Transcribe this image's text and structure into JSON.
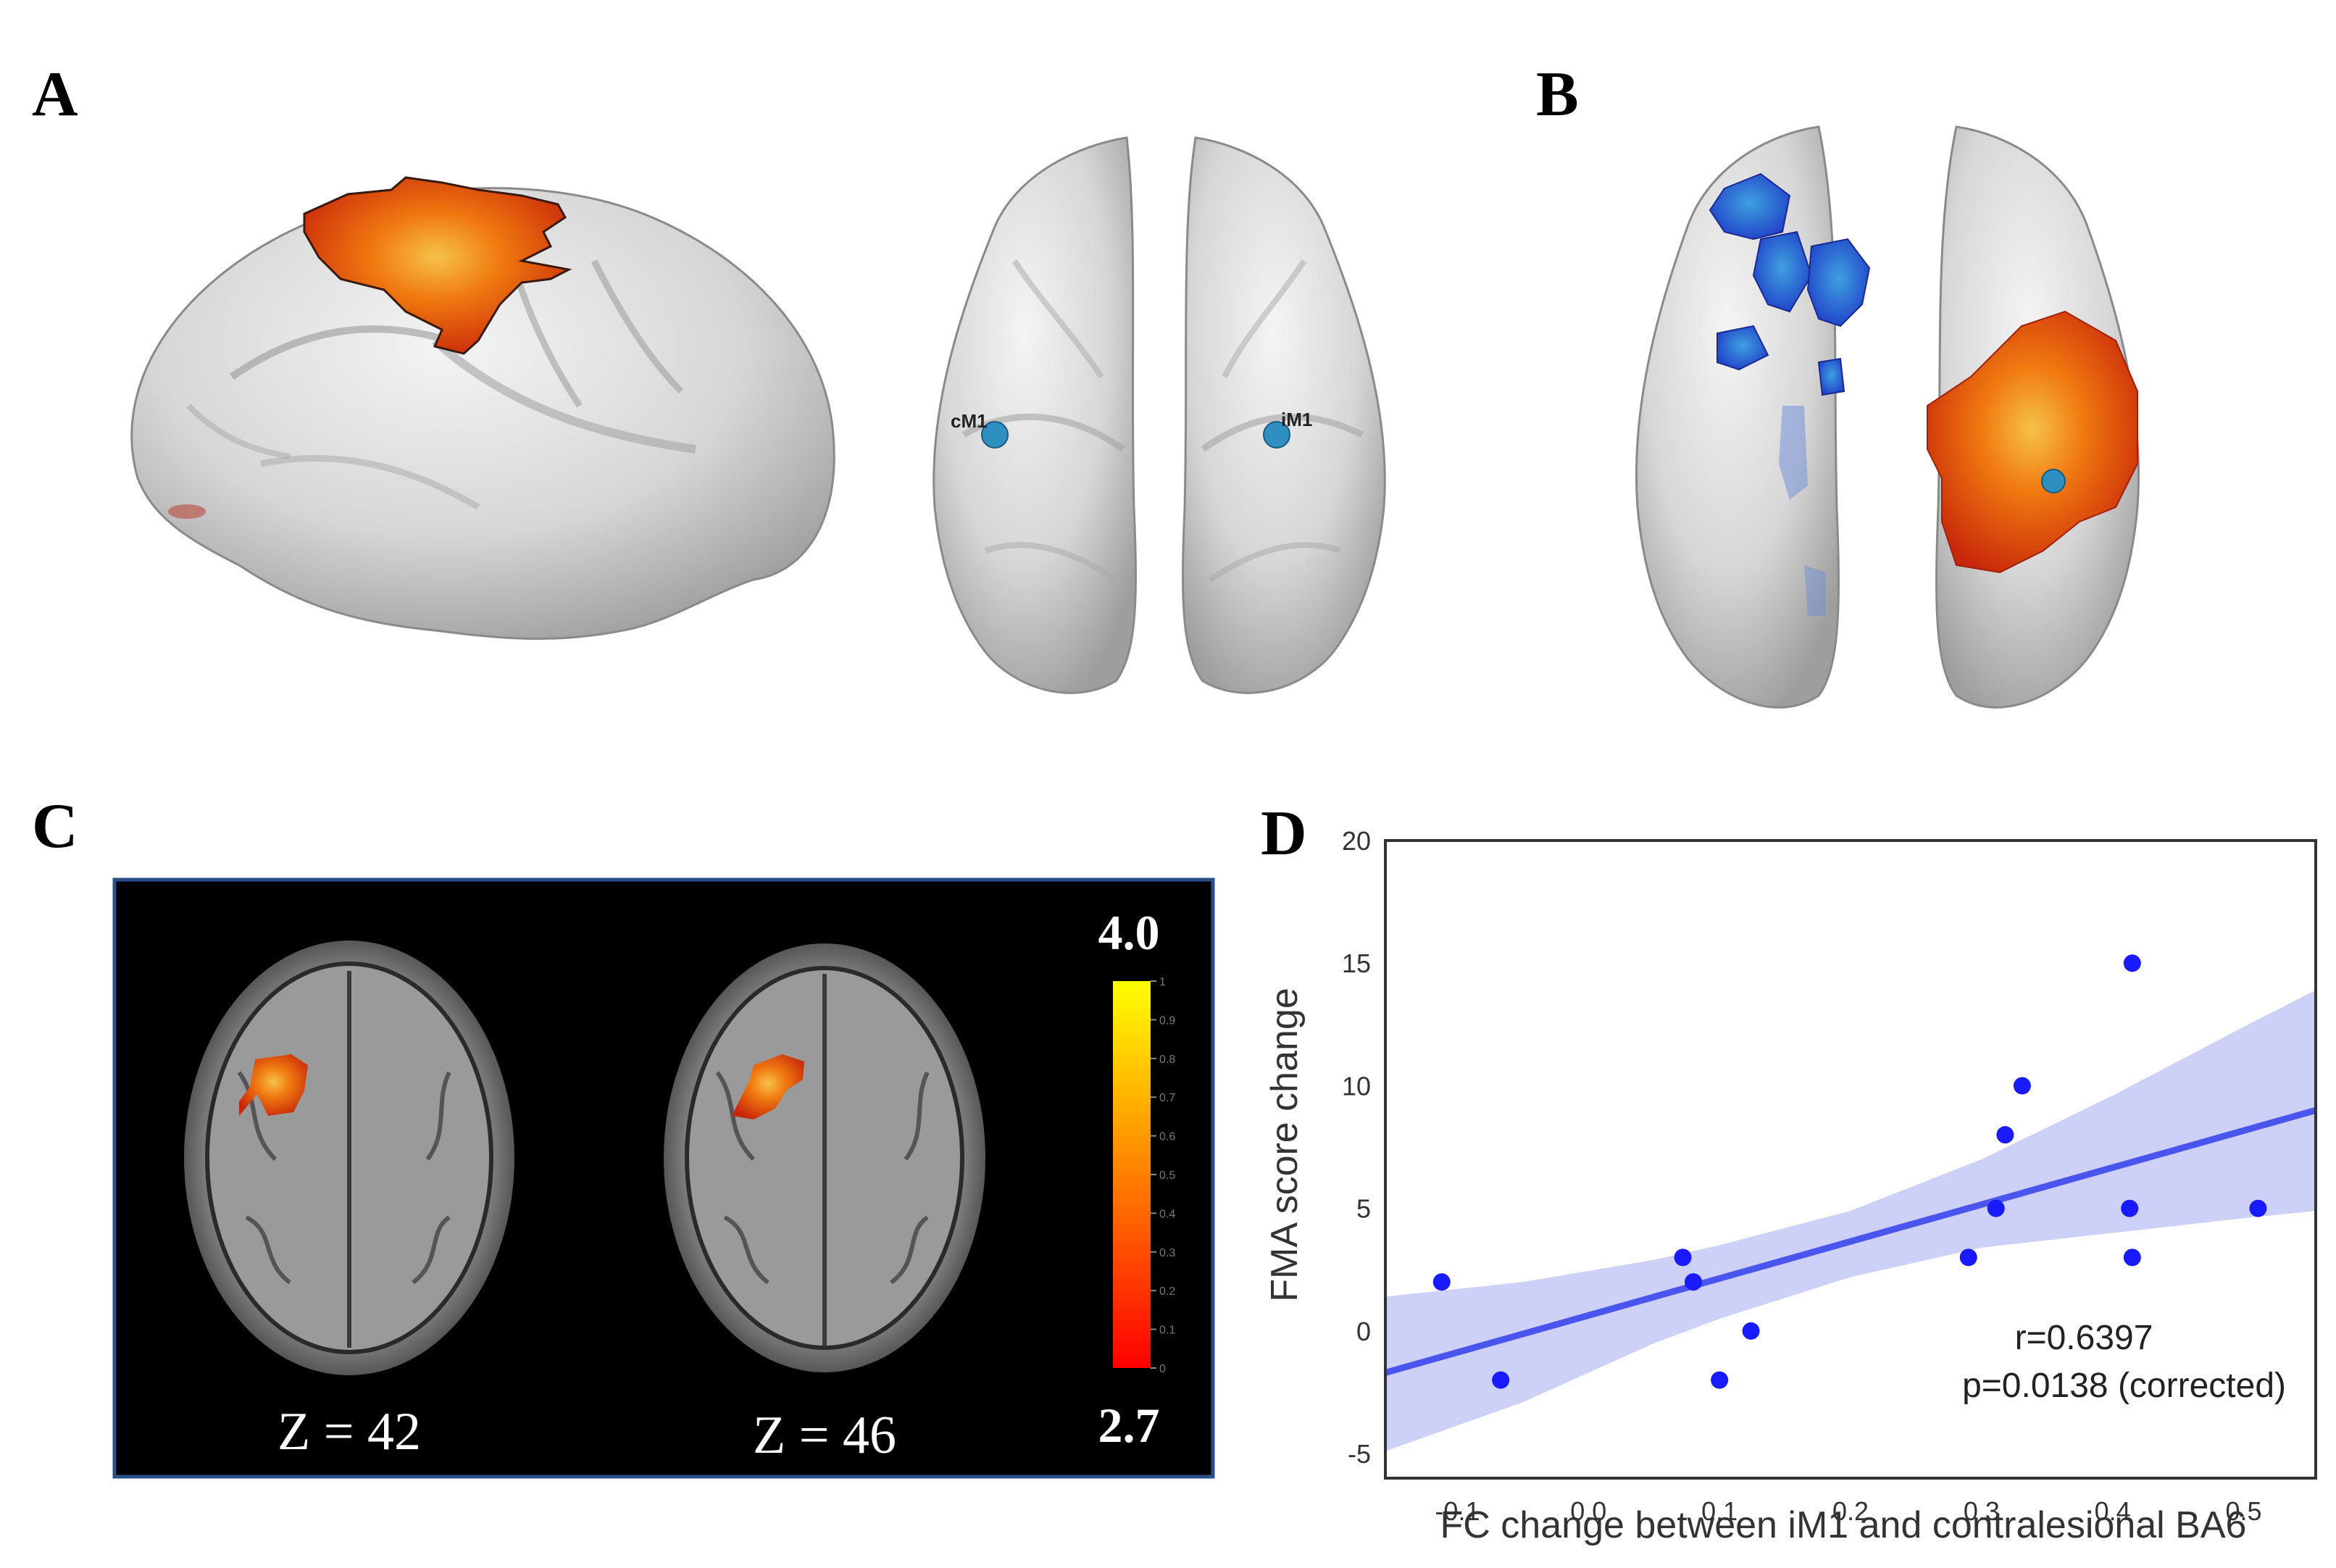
{
  "panels": {
    "a": {
      "letter": "A",
      "seed_left": "cM1",
      "seed_right": "iM1"
    },
    "b": {
      "letter": "B"
    },
    "c": {
      "letter": "C",
      "slice_left": "Z = 42",
      "slice_right": "Z = 46",
      "colorbar_max": "4.0",
      "colorbar_min": "2.7",
      "colorbar_ticks": [
        "0",
        "0.1",
        "0.2",
        "0.3",
        "0.4",
        "0.5",
        "0.6",
        "0.7",
        "0.8",
        "0.9",
        "1"
      ]
    },
    "d": {
      "letter": "D"
    }
  },
  "colors": {
    "activation_red": "#e8320a",
    "activation_orange": "#f07a10",
    "deactivation_blue": "#2a52d8",
    "seed_blue": "#2f8fc0",
    "scatter_point": "#1a1aff",
    "fit_line": "#4a55ee",
    "ci_band": "#c8cbf6"
  },
  "chart_data": {
    "type": "scatter",
    "xlabel": "FC change between iM1 and contralesional BA6",
    "ylabel": "FMA score change",
    "xlim": [
      -0.155,
      0.555
    ],
    "ylim": [
      -6,
      20
    ],
    "xticks": [
      "-0.1",
      "0.0",
      "0.1",
      "0.2",
      "0.3",
      "0.4",
      "0.5"
    ],
    "yticks": [
      "-5",
      "0",
      "5",
      "10",
      "15",
      "20"
    ],
    "points": [
      {
        "x": -0.112,
        "y": 2
      },
      {
        "x": -0.067,
        "y": -2
      },
      {
        "x": 0.072,
        "y": 3
      },
      {
        "x": 0.08,
        "y": 2
      },
      {
        "x": 0.1,
        "y": -2
      },
      {
        "x": 0.124,
        "y": 0
      },
      {
        "x": 0.29,
        "y": 3
      },
      {
        "x": 0.311,
        "y": 5
      },
      {
        "x": 0.318,
        "y": 8
      },
      {
        "x": 0.331,
        "y": 10
      },
      {
        "x": 0.413,
        "y": 5
      },
      {
        "x": 0.415,
        "y": 15
      },
      {
        "x": 0.415,
        "y": 3
      },
      {
        "x": 0.511,
        "y": 5
      }
    ],
    "fit": {
      "x": [
        -0.155,
        0.555
      ],
      "y": [
        -1.7,
        9.0
      ]
    },
    "ci_band": {
      "x": [
        -0.155,
        -0.05,
        0.05,
        0.1,
        0.2,
        0.3,
        0.4,
        0.5,
        0.555
      ],
      "upper": [
        1.4,
        2.0,
        2.9,
        3.5,
        4.9,
        7.0,
        9.6,
        12.4,
        13.9
      ],
      "lower": [
        -4.9,
        -2.9,
        -0.5,
        0.5,
        2.2,
        3.4,
        4.0,
        4.6,
        4.9
      ]
    },
    "annotation_r": "r=0.6397",
    "annotation_p": "p=0.0138 (corrected)"
  }
}
